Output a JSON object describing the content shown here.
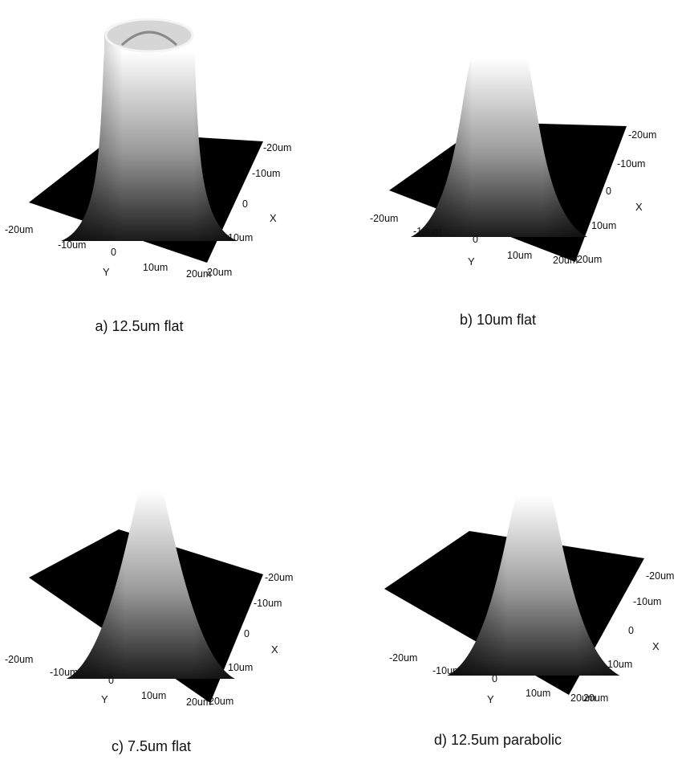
{
  "chart_data": [
    {
      "type": "surface3d",
      "caption": "a) 12.5um flat",
      "profile": "flat",
      "beam_width_um": 12.5,
      "x_axis_label": "X",
      "y_axis_label": "Y",
      "x_ticks": [
        "-20um",
        "-10um",
        "0",
        "10um",
        "20um"
      ],
      "y_ticks": [
        "-20um",
        "-10um",
        "0",
        "10um",
        "20um"
      ],
      "xlim": [
        -20,
        20
      ],
      "ylim": [
        -20,
        20
      ]
    },
    {
      "type": "surface3d",
      "caption": "b) 10um flat",
      "profile": "flat",
      "beam_width_um": 10,
      "x_axis_label": "X",
      "y_axis_label": "Y",
      "x_ticks": [
        "-20um",
        "-10um",
        "0",
        "10um",
        "20um"
      ],
      "y_ticks": [
        "-20um",
        "-10um",
        "0",
        "10um",
        "20um"
      ],
      "xlim": [
        -20,
        20
      ],
      "ylim": [
        -20,
        20
      ]
    },
    {
      "type": "surface3d",
      "caption": "c) 7.5um flat",
      "profile": "flat",
      "beam_width_um": 7.5,
      "x_axis_label": "X",
      "y_axis_label": "Y",
      "x_ticks": [
        "-20um",
        "-10um",
        "0",
        "10um",
        "20um"
      ],
      "y_ticks": [
        "-20um",
        "-10um",
        "0",
        "10um",
        "20um"
      ],
      "xlim": [
        -20,
        20
      ],
      "ylim": [
        -20,
        20
      ]
    },
    {
      "type": "surface3d",
      "caption": "d) 12.5um parabolic",
      "profile": "parabolic",
      "beam_width_um": 12.5,
      "x_axis_label": "X",
      "y_axis_label": "Y",
      "x_ticks": [
        "-20um",
        "-10um",
        "0",
        "10um",
        "20um"
      ],
      "y_ticks": [
        "-20um",
        "-10um",
        "0",
        "10um",
        "20um"
      ],
      "xlim": [
        -20,
        20
      ],
      "ylim": [
        -20,
        20
      ]
    }
  ],
  "colors": {
    "background": "#ffffff",
    "base_plane": "#000000",
    "surface_low": "#1a1a1a",
    "surface_high": "#ffffff"
  }
}
